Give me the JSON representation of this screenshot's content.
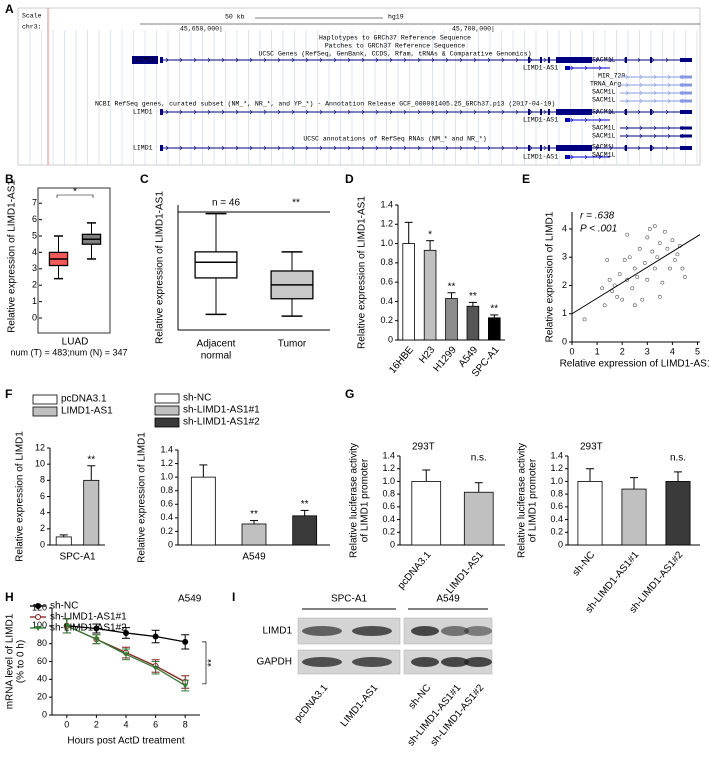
{
  "panel_labels": [
    "A",
    "B",
    "C",
    "D",
    "E",
    "F",
    "G",
    "H",
    "I"
  ],
  "genome_browser": {
    "texts": [
      "Scale",
      "chr3:",
      "50 kb",
      "hg19",
      "45,650,000|",
      "45,700,000|",
      "Haplotypes to GRCh37 Reference Sequence",
      "Patches to GRCh37 Reference Sequence",
      "UCSC Genes (RefSeq, GenBank, CCDS, Rfam, tRNAs & Comparative Genomics)",
      "LIMD1",
      "SACM1L",
      "LIMD1-AS1",
      "MIR_720",
      "TRNA_Arg",
      "SACM1L",
      "SACM1L",
      "NCBI RefSeq genes, curated subset (NM_*, NR_*, and YP_*) - Annotation Release GCF_000001405.25_GRCh37.p13 (2017-04-19)",
      "LIMD1",
      "SACM1L",
      "LIMD1-AS1",
      "SACM1L",
      "SACM1L",
      "UCSC annotations of RefSeq RNAs (NM_* and NR_*)",
      "LIMD1",
      "SACM1L",
      "SACM1L",
      "LIMD1-AS1"
    ]
  },
  "western_blot": {
    "groups": [
      "SPC-A1",
      "A549"
    ],
    "proteins": [
      "LIMD1",
      "GAPDH"
    ],
    "lanes": [
      "pcDNA3.1",
      "LIMD1-AS1",
      "sh-NC",
      "sh-LIMD1-AS1#1",
      "sh-LIMD1-AS1#2"
    ]
  },
  "chart_data": [
    {
      "type": "box",
      "ylabel": "Relative expression of LIMD1-AS1",
      "xlabel": "LUAD",
      "note": "num (T) = 483;num (N) = 347",
      "annotation": "*",
      "ylim": [
        0,
        7.5
      ],
      "yticks": [
        0,
        1,
        2,
        3,
        4,
        5,
        6,
        7
      ],
      "boxes": [
        {
          "color": "#f15a5a",
          "whisker_low": 2.4,
          "q1": 3.2,
          "median": 3.6,
          "q3": 4.0,
          "whisker_high": 5.0
        },
        {
          "color": "#808080",
          "whisker_low": 3.6,
          "q1": 4.5,
          "median": 4.8,
          "q3": 5.1,
          "whisker_high": 5.8
        }
      ]
    },
    {
      "type": "box",
      "ylabel": "Relative expression of LIMD1-AS1",
      "categories": [
        [
          "Adjacent",
          "normal"
        ],
        "Tumor"
      ],
      "annotations": [
        "n = 46",
        "**"
      ],
      "ylim": [
        0,
        7.2
      ],
      "boxes": [
        {
          "color": "#ffffff",
          "whisker_low": 0.9,
          "q1": 3.0,
          "median": 3.9,
          "q3": 4.5,
          "whisker_high": 6.7
        },
        {
          "color": "#c8c8c8",
          "whisker_low": 0.8,
          "q1": 1.8,
          "median": 2.6,
          "q3": 3.4,
          "whisker_high": 4.5
        }
      ]
    },
    {
      "type": "bar",
      "ylabel": "Relative expression of LIMD1-AS1",
      "categories": [
        "16HBE",
        "H23",
        "H1299",
        "A549",
        "SPC-A1"
      ],
      "values": [
        1.0,
        0.93,
        0.43,
        0.35,
        0.23
      ],
      "errors": [
        0.22,
        0.1,
        0.06,
        0.04,
        0.03
      ],
      "significance": [
        null,
        "*",
        "**",
        "**",
        "**"
      ],
      "colors": [
        "#ffffff",
        "#c0c0c0",
        "#8c8c8c",
        "#555555",
        "#000000"
      ],
      "ylim": [
        0,
        1.4
      ],
      "yticks": [
        0,
        0.2,
        0.4,
        0.6,
        0.8,
        {
          "value": 1,
          "label": "1.0"
        },
        1.2,
        1.4
      ]
    },
    {
      "type": "scatter",
      "ylabel": "Relative expression of LIMD1",
      "xlabel": "Relative expression of LIMD1-AS1",
      "annotations": [
        "r = .638",
        "P < .001"
      ],
      "x": [
        0.5,
        1.2,
        1.3,
        1.5,
        1.6,
        1.7,
        1.8,
        1.9,
        2.0,
        2.1,
        2.2,
        2.3,
        2.4,
        2.5,
        2.5,
        2.6,
        2.7,
        2.8,
        2.9,
        3.0,
        3.0,
        3.1,
        3.2,
        3.3,
        3.4,
        3.5,
        3.5,
        3.6,
        3.7,
        3.8,
        3.9,
        4.0,
        4.1,
        4.2,
        4.3,
        4.4,
        1.4,
        2.2,
        3.3,
        4.5
      ],
      "y": [
        0.8,
        1.9,
        1.3,
        2.2,
        1.8,
        2.0,
        1.6,
        2.4,
        1.5,
        2.9,
        2.2,
        3.0,
        1.9,
        1.3,
        2.6,
        2.3,
        3.3,
        1.5,
        2.8,
        3.7,
        2.2,
        4.0,
        3.2,
        2.6,
        3.0,
        1.6,
        3.5,
        2.1,
        3.9,
        3.3,
        2.6,
        3.6,
        2.9,
        3.1,
        3.4,
        2.6,
        2.9,
        3.8,
        4.1,
        2.3
      ],
      "fit": {
        "x": [
          0,
          5.1
        ],
        "y": [
          1.0,
          3.8
        ]
      },
      "xlim": [
        0,
        5.1
      ],
      "xticks": [
        0,
        1,
        2,
        3,
        4,
        5
      ],
      "ylim": [
        0,
        4.6
      ],
      "yticks": [
        0,
        1,
        2,
        3,
        4
      ]
    },
    {
      "type": "bar",
      "ylabel": "Relative expression of LIMD1",
      "categories": [
        "SPC-A1"
      ],
      "series": [
        {
          "name": "pcDNA3.1",
          "color": "#ffffff",
          "values": [
            1.0
          ],
          "errors": [
            0.25
          ],
          "significance": [
            null
          ]
        },
        {
          "name": "LIMD1-AS1",
          "color": "#c0c0c0",
          "values": [
            8.0
          ],
          "errors": [
            1.8
          ],
          "significance": [
            "**"
          ]
        }
      ],
      "ylim": [
        0,
        12
      ],
      "yticks": [
        0,
        2,
        4,
        6,
        8,
        10,
        12
      ]
    },
    {
      "type": "bar",
      "ylabel": "Relative expression of LIMD1",
      "categories": [
        "A549"
      ],
      "series": [
        {
          "name": "sh-NC",
          "color": "#ffffff",
          "values": [
            1.0
          ],
          "errors": [
            0.18
          ],
          "significance": [
            null
          ]
        },
        {
          "name": "sh-LIMD1-AS1#1",
          "color": "#c0c0c0",
          "values": [
            0.31
          ],
          "errors": [
            0.05
          ],
          "significance": [
            "**"
          ]
        },
        {
          "name": "sh-LIMD1-AS1#2",
          "color": "#3a3a3a",
          "values": [
            0.43
          ],
          "errors": [
            0.08
          ],
          "significance": [
            "**"
          ]
        }
      ],
      "ylim": [
        0,
        1.4
      ],
      "yticks": [
        0,
        0.2,
        0.4,
        0.6,
        0.8,
        {
          "value": 1,
          "label": "1.0"
        },
        1.2,
        1.4
      ]
    },
    {
      "type": "bar",
      "title": "293T",
      "ylabel": [
        "Relative luciferase activity",
        "of LIMD1 promoter"
      ],
      "categories": [
        "pcDNA3.1",
        "LIMD1-AS1"
      ],
      "values": [
        1.0,
        0.83
      ],
      "errors": [
        0.18,
        0.15
      ],
      "colors": [
        "#ffffff",
        "#c0c0c0"
      ],
      "annotation": "n.s.",
      "ylim": [
        0,
        1.4
      ],
      "yticks": [
        0,
        0.2,
        0.4,
        0.6,
        0.8,
        {
          "value": 1,
          "label": "1.0"
        },
        1.2,
        1.4
      ]
    },
    {
      "type": "bar",
      "title": "293T",
      "ylabel": [
        "Relative luciferase activity",
        "of LIMD1 promoter"
      ],
      "categories": [
        "sh-NC",
        "sh-LIMD1-AS1#1",
        "sh-LIMD1-AS1#2"
      ],
      "values": [
        1.0,
        0.88,
        1.0
      ],
      "errors": [
        0.2,
        0.18,
        0.15
      ],
      "colors": [
        "#ffffff",
        "#c0c0c0",
        "#3a3a3a"
      ],
      "annotation": "n.s.",
      "ylim": [
        0,
        1.4
      ],
      "yticks": [
        0,
        0.2,
        0.4,
        0.6,
        0.8,
        {
          "value": 1,
          "label": "1.0"
        },
        1.2,
        1.4
      ]
    },
    {
      "type": "line",
      "title": "A549",
      "ylabel": [
        "mRNA level of LIMD1",
        "(% to 0 h)"
      ],
      "xlabel": "Hours post ActD treatment",
      "annotation": "**",
      "x": [
        0,
        2,
        4,
        6,
        8
      ],
      "xlim": [
        -1,
        9
      ],
      "xticks": [
        0,
        2,
        4,
        6,
        8
      ],
      "ylim": [
        0,
        120
      ],
      "yticks": [
        0,
        20,
        40,
        60,
        80,
        100,
        120
      ],
      "series": [
        {
          "name": "sh-NC",
          "color": "#000000",
          "marker": "circle",
          "values": [
            100,
            97,
            92,
            88,
            82
          ],
          "errors": [
            8,
            5,
            6,
            7,
            8
          ]
        },
        {
          "name": "sh-LIMD1-AS1#1",
          "color": "#8b1a1a",
          "marker": "open-circle",
          "values": [
            100,
            85,
            70,
            55,
            37
          ],
          "errors": [
            8,
            5,
            6,
            7,
            7
          ]
        },
        {
          "name": "sh-LIMD1-AS1#2",
          "color": "#2e7d32",
          "marker": "triangle",
          "values": [
            100,
            85,
            68,
            53,
            33
          ],
          "errors": [
            8,
            5,
            6,
            7,
            6
          ]
        }
      ]
    }
  ]
}
